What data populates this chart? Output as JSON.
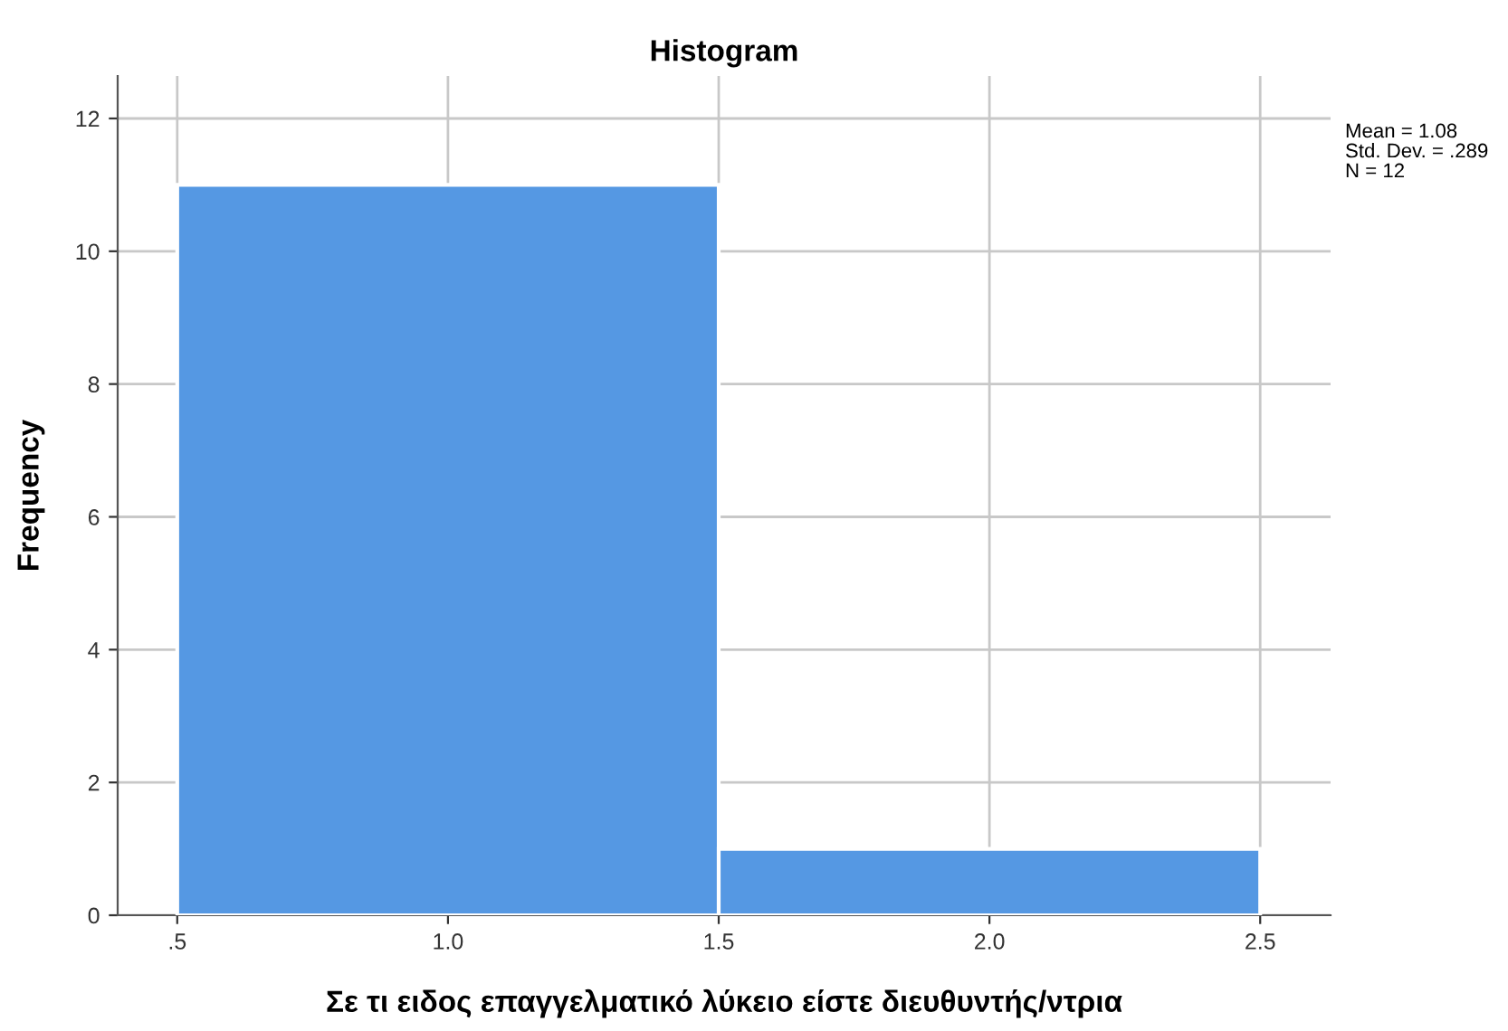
{
  "chart_data": {
    "type": "histogram",
    "title": "Histogram",
    "xlabel": "Σε τι ειδος επαγγελματικό λύκειο είστε διευθυντής/ντρια",
    "ylabel": "Frequency",
    "bins": [
      0.5,
      1.5,
      2.5
    ],
    "values": [
      11,
      1
    ],
    "color": "#5598e3",
    "xlim": [
      0.39,
      2.63
    ],
    "xticks": [
      {
        "value": 0.5,
        "label": ".5"
      },
      {
        "value": 1.0,
        "label": "1.0"
      },
      {
        "value": 1.5,
        "label": "1.5"
      },
      {
        "value": 2.0,
        "label": "2.0"
      },
      {
        "value": 2.5,
        "label": "2.5"
      }
    ],
    "ylim": [
      0,
      12.64
    ],
    "yticks": [
      0,
      2,
      4,
      6,
      8,
      10,
      12
    ],
    "grid": true,
    "annotations": [
      "Mean = 1.08",
      "Std. Dev. = .289",
      "N = 12"
    ]
  }
}
